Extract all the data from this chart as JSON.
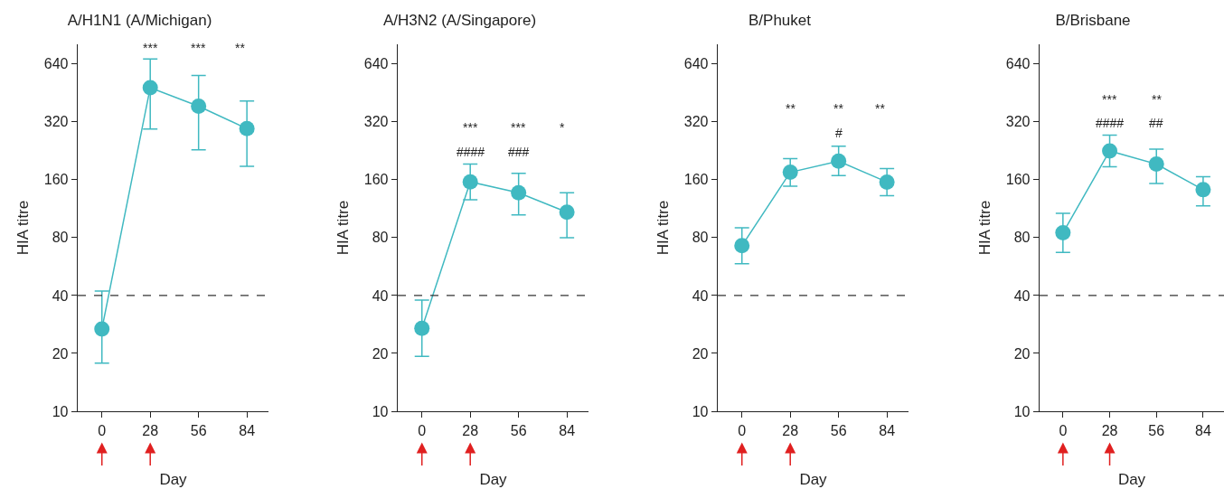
{
  "chart_data": [
    {
      "type": "line",
      "title": "A/H1N1 (A/Michigan)",
      "xlabel": "Day",
      "ylabel": "HIA titre",
      "x": [
        0,
        28,
        56,
        84
      ],
      "xlim": [
        -14,
        96.5
      ],
      "xticks": [
        0,
        28,
        56,
        84
      ],
      "ylim": [
        10,
        810
      ],
      "yticks": [
        10,
        20,
        40,
        80,
        160,
        320,
        640
      ],
      "log": "y",
      "grid": false,
      "marker": "circle",
      "line_style": "solid",
      "color": "#40b9c1",
      "values": [
        26.8,
        482,
        386,
        295
      ],
      "errors": [
        [
          17.8,
          42.2
        ],
        [
          294,
          680
        ],
        [
          229,
          557
        ],
        [
          188,
          411
        ]
      ],
      "ref_lines": [
        {
          "axis": "y",
          "value": 40,
          "line_style": "dashed",
          "color": "#333333"
        }
      ],
      "annotations": [
        "***",
        "***",
        "**"
      ]
    },
    {
      "type": "line",
      "title": "A/H3N2 (A/Singapore)",
      "xlabel": "Day",
      "ylabel": "HIA titre",
      "x": [
        0,
        28,
        56,
        84
      ],
      "xlim": [
        -14,
        96.5
      ],
      "xticks": [
        0,
        28,
        56,
        84
      ],
      "ylim": [
        10,
        810
      ],
      "yticks": [
        10,
        20,
        40,
        80,
        160,
        320,
        640
      ],
      "log": "y",
      "grid": false,
      "marker": "circle",
      "line_style": "solid",
      "color": "#40b9c1",
      "values": [
        27,
        156,
        137,
        108.5
      ],
      "errors": [
        [
          19.3,
          37.9
        ],
        [
          126,
          193
        ],
        [
          105,
          173
        ],
        [
          80,
          137
        ]
      ],
      "ref_lines": [
        {
          "axis": "y",
          "value": 40,
          "line_style": "dashed",
          "color": "#333333"
        }
      ],
      "annotations": [
        "***",
        "***",
        "*",
        "####",
        "###"
      ]
    },
    {
      "type": "line",
      "title": "B/Phuket",
      "xlabel": "Day",
      "ylabel": "HIA titre",
      "x": [
        0,
        28,
        56,
        84
      ],
      "xlim": [
        -14,
        96.5
      ],
      "xticks": [
        0,
        28,
        56,
        84
      ],
      "ylim": [
        10,
        810
      ],
      "yticks": [
        10,
        20,
        40,
        80,
        160,
        320,
        640
      ],
      "log": "y",
      "grid": false,
      "marker": "circle",
      "line_style": "solid",
      "color": "#40b9c1",
      "values": [
        72.6,
        175,
        200,
        155.6
      ],
      "errors": [
        [
          58.5,
          90
        ],
        [
          148,
          206
        ],
        [
          168,
          239
        ],
        [
          132,
          183
        ]
      ],
      "ref_lines": [
        {
          "axis": "y",
          "value": 40,
          "line_style": "dashed",
          "color": "#333333"
        }
      ],
      "annotations": [
        "**",
        "**",
        "**",
        "#"
      ]
    },
    {
      "type": "line",
      "title": "B/Brisbane",
      "xlabel": "Day",
      "ylabel": "HIA titre",
      "x": [
        0,
        28,
        56,
        84
      ],
      "xlim": [
        -14,
        96.5
      ],
      "xticks": [
        0,
        28,
        56,
        84
      ],
      "ylim": [
        10,
        810
      ],
      "yticks": [
        10,
        20,
        40,
        80,
        160,
        320,
        640
      ],
      "log": "y",
      "grid": false,
      "marker": "circle",
      "line_style": "solid",
      "color": "#40b9c1",
      "values": [
        84.7,
        226,
        193,
        142
      ],
      "errors": [
        [
          67,
          107
        ],
        [
          187,
          273
        ],
        [
          153,
          231
        ],
        [
          117,
          166
        ]
      ],
      "ref_lines": [
        {
          "axis": "y",
          "value": 40,
          "line_style": "dashed",
          "color": "#333333"
        }
      ],
      "annotations": [
        "***",
        "**",
        "####",
        "##"
      ]
    }
  ]
}
